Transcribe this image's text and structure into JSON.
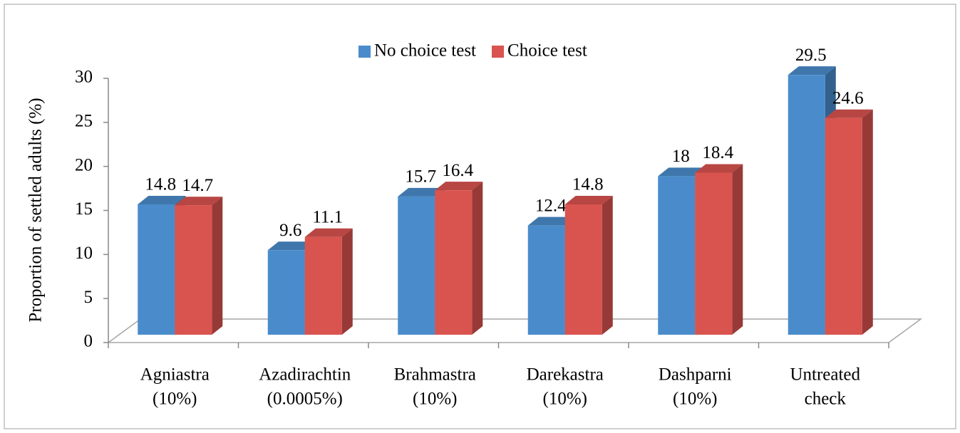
{
  "chart_data": {
    "type": "bar",
    "y_label": "Proportion of settled adults (%)",
    "categories": [
      [
        "Agniastra",
        "(10%)"
      ],
      [
        "Azadirachtin",
        "(0.0005%)"
      ],
      [
        "Brahmastra",
        "(10%)"
      ],
      [
        "Darekastra",
        "(10%)"
      ],
      [
        "Dashparni",
        "(10%)"
      ],
      [
        "Untreated",
        "check"
      ]
    ],
    "series": [
      {
        "name": "No choice test",
        "color": "#4a8ccb",
        "values": [
          14.8,
          9.6,
          15.7,
          12.4,
          18,
          29.5
        ]
      },
      {
        "name": "Choice test",
        "color": "#d9534f",
        "values": [
          14.7,
          11.1,
          16.4,
          14.8,
          18.4,
          24.6
        ]
      }
    ],
    "ylim": [
      0,
      30
    ],
    "yticks": [
      0,
      5,
      10,
      15,
      20,
      25,
      30
    ],
    "legend": "top",
    "grid": false
  }
}
